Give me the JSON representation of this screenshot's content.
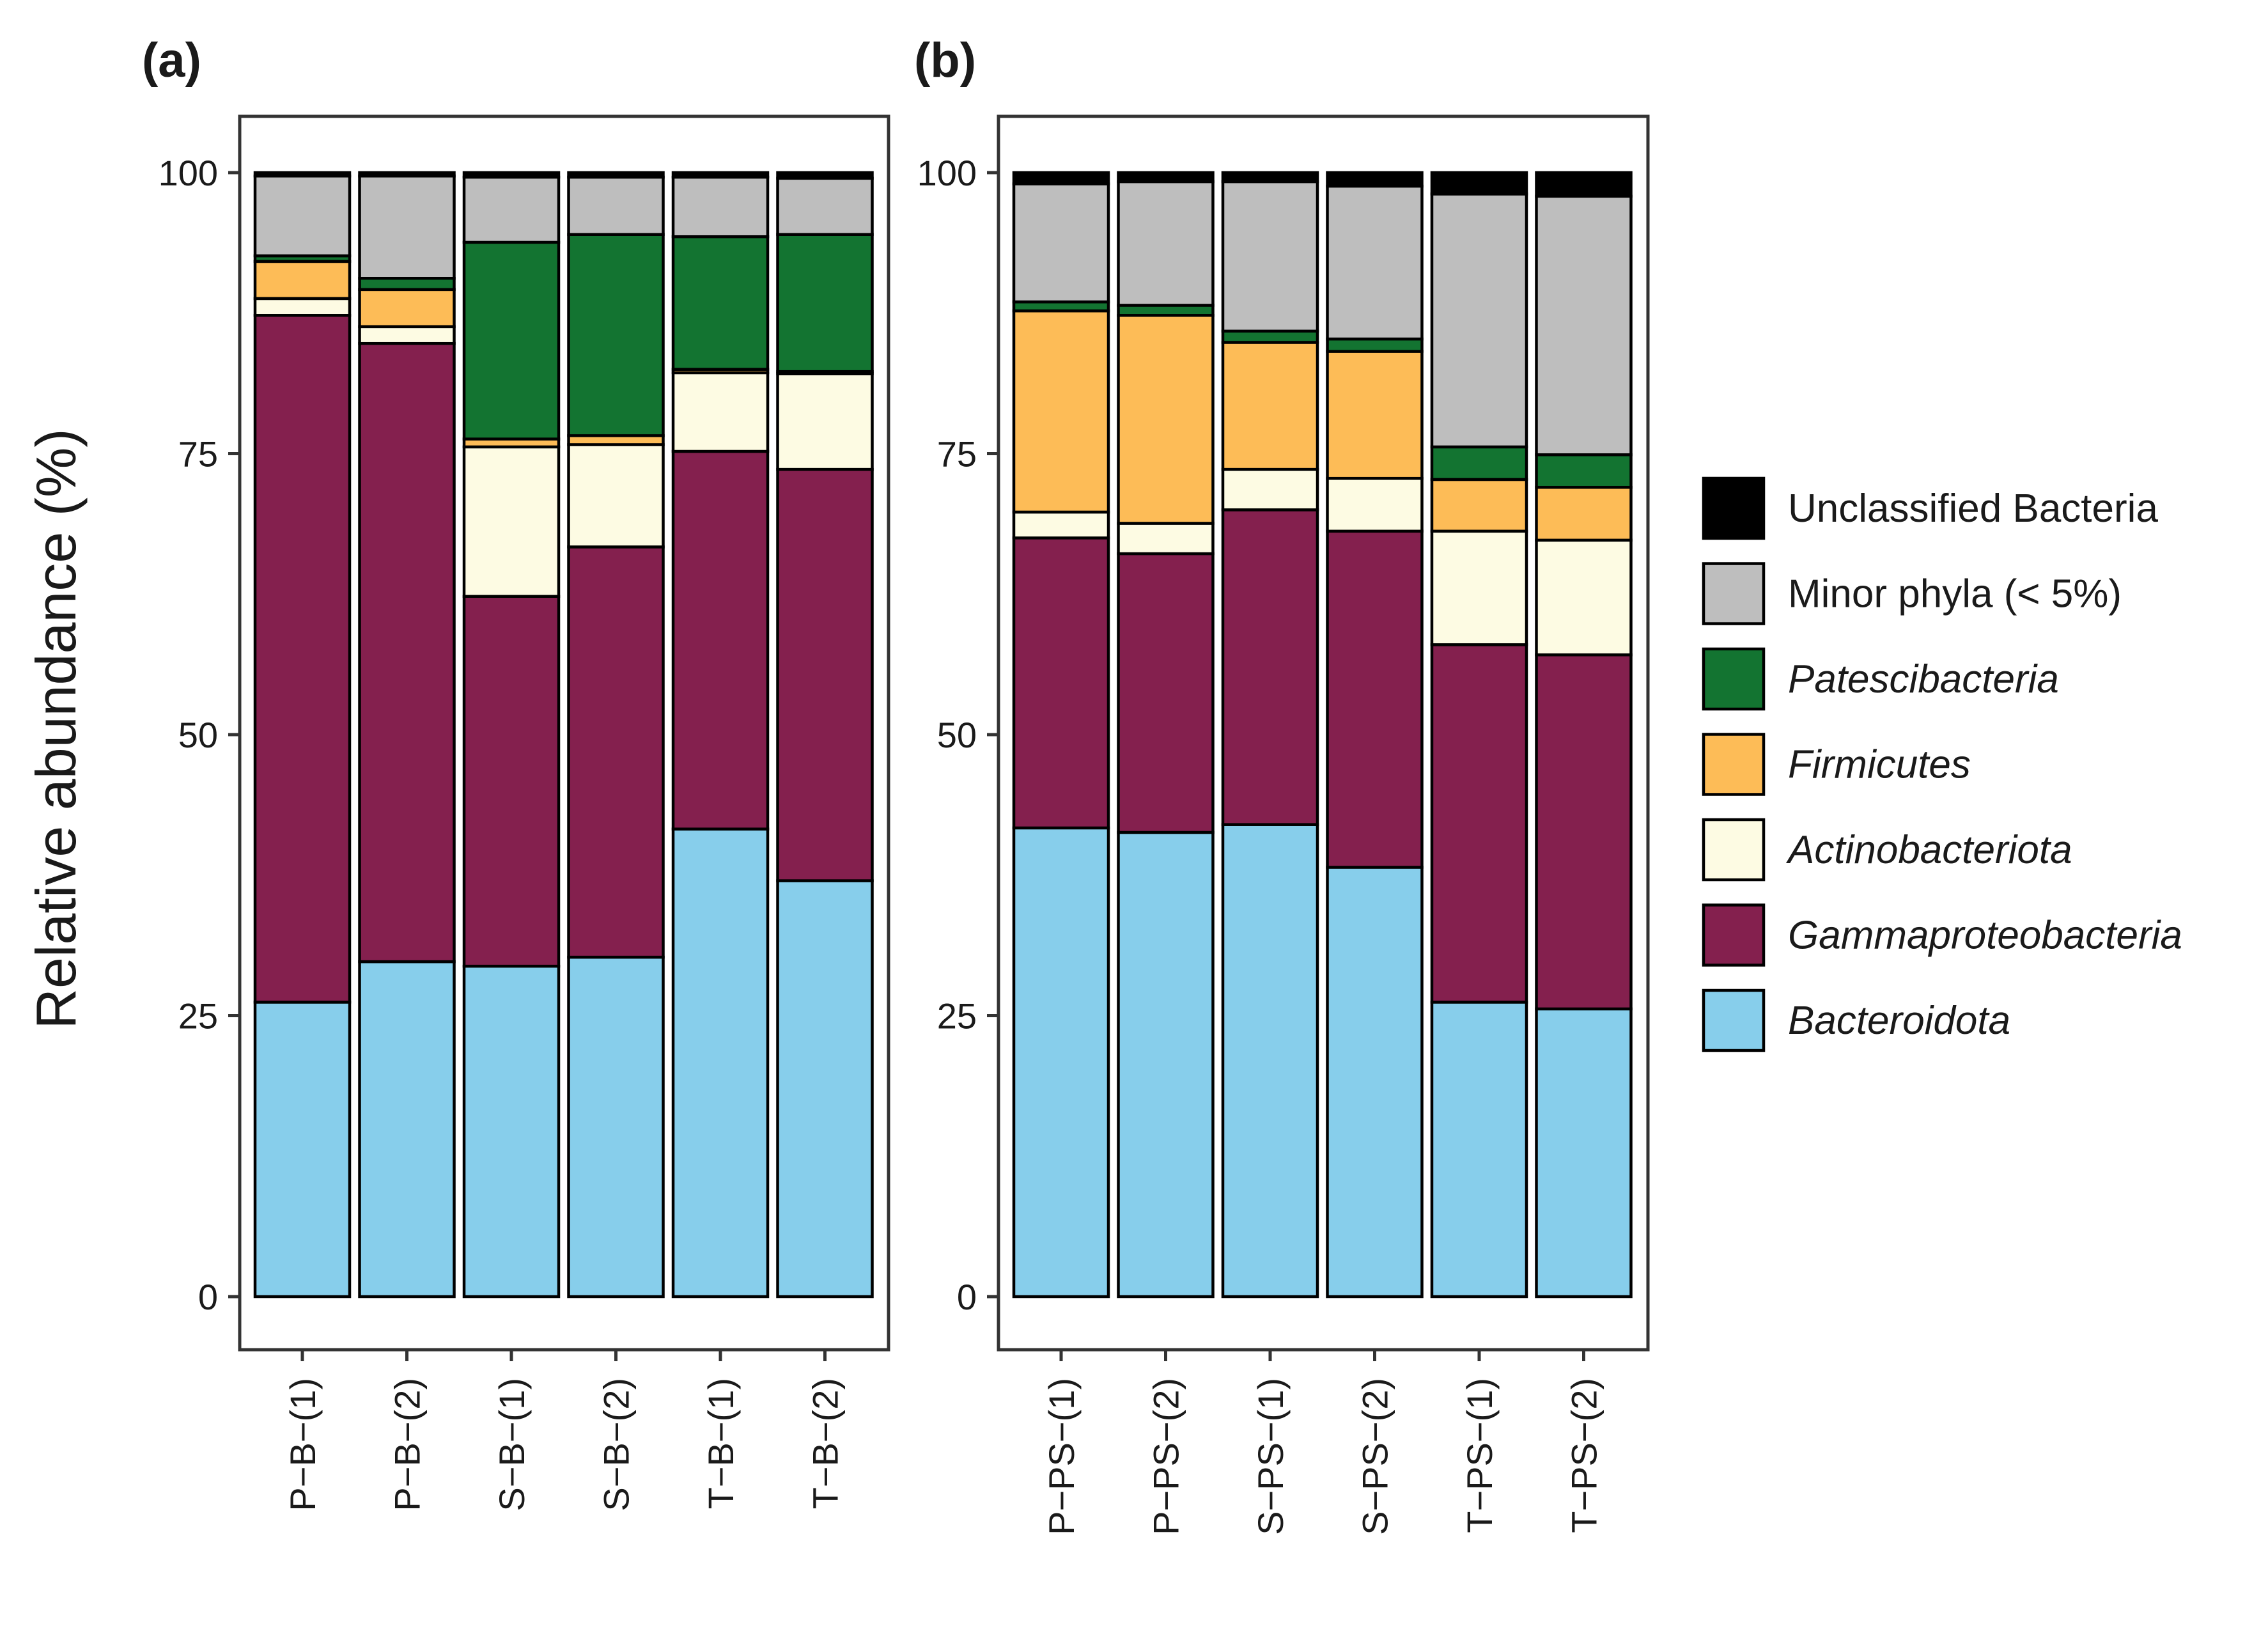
{
  "figure": {
    "ylabel": "Relative abundance (%)"
  },
  "legend": {
    "items": [
      {
        "key": "unclassified",
        "label": "Unclassified Bacteria",
        "italic": false
      },
      {
        "key": "minor",
        "label": "Minor phyla (< 5%)",
        "italic": false
      },
      {
        "key": "patescibacteria",
        "label": "Patescibacteria",
        "italic": true
      },
      {
        "key": "firmicutes",
        "label": "Firmicutes",
        "italic": true
      },
      {
        "key": "actinobacteriota",
        "label": "Actinobacteriota",
        "italic": true
      },
      {
        "key": "gammaproteobacteria",
        "label": "Gammaproteobacteria",
        "italic": true
      },
      {
        "key": "bacteroidota",
        "label": "Bacteroidota",
        "italic": true
      }
    ]
  },
  "colors": {
    "bacteroidota": "#87ceeb",
    "gammaproteobacteria": "#84204e",
    "actinobacteriota": "#fdfbe3",
    "firmicutes": "#fdbc57",
    "patescibacteria": "#137431",
    "minor": "#bebebe",
    "unclassified": "#000000"
  },
  "chart_data": [
    {
      "type": "bar",
      "stacked": true,
      "title": "(a)",
      "ylabel": "Relative abundance (%)",
      "ylim": [
        0,
        100
      ],
      "yticks": [
        0,
        25,
        50,
        75,
        100
      ],
      "categories": [
        "P−B−(1)",
        "P−B−(2)",
        "S−B−(1)",
        "S−B−(2)",
        "T−B−(1)",
        "T−B−(2)"
      ],
      "series": [
        {
          "key": "bacteroidota",
          "name": "Bacteroidota",
          "values": [
            26.2,
            29.8,
            29.4,
            30.2,
            41.6,
            37.0
          ]
        },
        {
          "key": "gammaproteobacteria",
          "name": "Gammaproteobacteria",
          "values": [
            61.1,
            55.0,
            32.9,
            36.5,
            33.6,
            36.6
          ]
        },
        {
          "key": "actinobacteriota",
          "name": "Actinobacteriota",
          "values": [
            1.5,
            1.5,
            13.3,
            9.1,
            7.0,
            8.5
          ]
        },
        {
          "key": "firmicutes",
          "name": "Firmicutes",
          "values": [
            3.3,
            3.3,
            0.7,
            0.8,
            0.3,
            0.2
          ]
        },
        {
          "key": "patescibacteria",
          "name": "Patescibacteria",
          "values": [
            0.5,
            1.0,
            17.5,
            17.9,
            11.8,
            12.2
          ]
        },
        {
          "key": "minor",
          "name": "Minor phyla (< 5%)",
          "values": [
            7.1,
            9.1,
            5.8,
            5.1,
            5.3,
            5.0
          ]
        },
        {
          "key": "unclassified",
          "name": "Unclassified Bacteria",
          "values": [
            0.3,
            0.3,
            0.4,
            0.4,
            0.4,
            0.5
          ]
        }
      ]
    },
    {
      "type": "bar",
      "stacked": true,
      "title": "(b)",
      "ylabel": "Relative abundance (%)",
      "ylim": [
        0,
        100
      ],
      "yticks": [
        0,
        25,
        50,
        75,
        100
      ],
      "categories": [
        "P−PS−(1)",
        "P−PS−(2)",
        "S−PS−(1)",
        "S−PS−(2)",
        "T−PS−(1)",
        "T−PS−(2)"
      ],
      "series": [
        {
          "key": "bacteroidota",
          "name": "Bacteroidota",
          "values": [
            41.7,
            41.3,
            42.0,
            38.2,
            26.2,
            25.6
          ]
        },
        {
          "key": "gammaproteobacteria",
          "name": "Gammaproteobacteria",
          "values": [
            25.8,
            24.8,
            28.0,
            29.9,
            31.8,
            31.5
          ]
        },
        {
          "key": "actinobacteriota",
          "name": "Actinobacteriota",
          "values": [
            2.3,
            2.7,
            3.6,
            4.7,
            10.1,
            10.2
          ]
        },
        {
          "key": "firmicutes",
          "name": "Firmicutes",
          "values": [
            17.9,
            18.5,
            11.3,
            11.3,
            4.6,
            4.7
          ]
        },
        {
          "key": "patescibacteria",
          "name": "Patescibacteria",
          "values": [
            0.8,
            0.9,
            1.0,
            1.1,
            2.9,
            2.9
          ]
        },
        {
          "key": "minor",
          "name": "Minor phyla (< 5%)",
          "values": [
            10.5,
            11.0,
            13.3,
            13.6,
            22.5,
            23.0
          ]
        },
        {
          "key": "unclassified",
          "name": "Unclassified Bacteria",
          "values": [
            1.0,
            0.8,
            0.8,
            1.2,
            1.9,
            2.1
          ]
        }
      ]
    }
  ]
}
